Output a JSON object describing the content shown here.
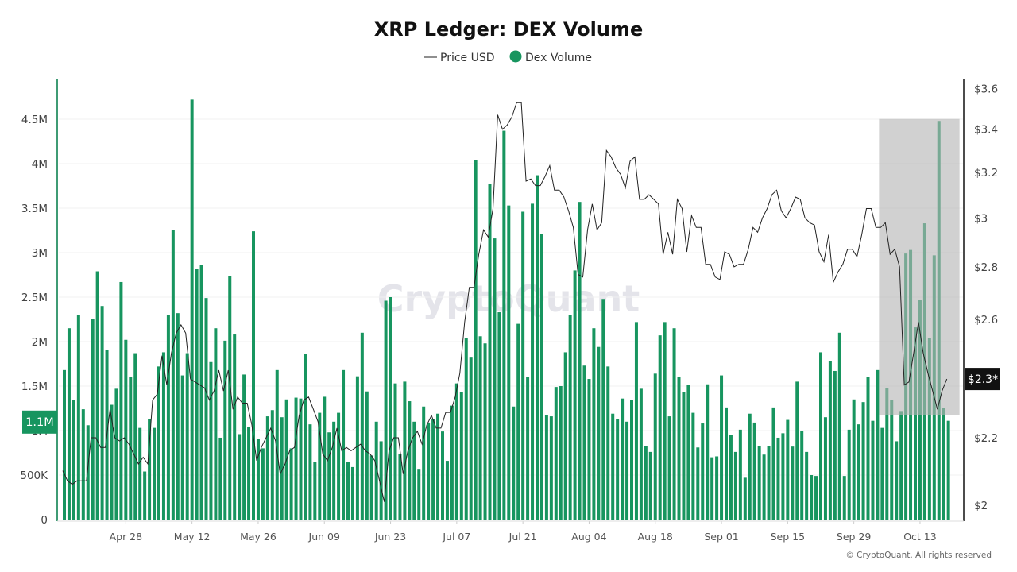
{
  "chart_data": {
    "type": "bar+line",
    "title": "XRP Ledger: DEX Volume",
    "legend": {
      "placement": "top-center",
      "entries": [
        "Price USD",
        "Dex Volume"
      ]
    },
    "watermark": "CryptoQuant",
    "footer": "© CryptoQuant. All rights reserved",
    "x_tick_labels": [
      "Apr 28",
      "May 12",
      "May 26",
      "Jun 09",
      "Jun 23",
      "Jul 07",
      "Jul 21",
      "Aug 04",
      "Aug 18",
      "Sep 01",
      "Sep 15",
      "Sep 29",
      "Oct 13"
    ],
    "left_axis": {
      "ticks": [
        "0",
        "500K",
        "1M",
        "1.5M",
        "2M",
        "2.5M",
        "3M",
        "3.5M",
        "4M",
        "4.5M"
      ],
      "tick_values": [
        0,
        0.5,
        1,
        1.5,
        2,
        2.5,
        3,
        3.5,
        4,
        4.5
      ],
      "unit": "M",
      "ylim": [
        0,
        4.9
      ],
      "hover_label": "1.1M",
      "hover_value": 1.1
    },
    "right_axis": {
      "scale": "log",
      "ticks": [
        "$2",
        "$2.2",
        "$2.6",
        "$2.8",
        "$3",
        "$3.2",
        "$3.4",
        "$3.6"
      ],
      "tick_values": [
        2,
        2.2,
        2.6,
        2.8,
        3,
        3.2,
        3.4,
        3.6
      ],
      "ylim": [
        1.96,
        3.7
      ],
      "last_label": "$2.3*"
    },
    "grid": true,
    "highlight_region": {
      "from_index": 173,
      "to_index": 187,
      "top_value_price": 3.45,
      "bottom_value_volume": 1.17
    },
    "colors": {
      "volume": "#17955f",
      "price": "#222222",
      "left_axis": "#3f9b74",
      "highlight": "#b4b4b4"
    },
    "series": [
      {
        "name": "Dex Volume",
        "type": "bar",
        "axis": "left",
        "values": [
          1.68,
          2.15,
          1.34,
          2.3,
          1.24,
          1.06,
          2.25,
          2.79,
          2.4,
          1.91,
          1.29,
          1.47,
          2.67,
          2.02,
          1.6,
          1.87,
          1.03,
          0.54,
          1.13,
          1.03,
          1.72,
          1.88,
          2.3,
          3.25,
          2.32,
          1.62,
          1.87,
          4.72,
          2.82,
          2.86,
          2.49,
          1.77,
          2.15,
          0.92,
          2.01,
          2.74,
          2.08,
          0.96,
          1.63,
          1.04,
          3.24,
          0.91,
          0.8,
          1.16,
          1.23,
          1.68,
          1.15,
          1.35,
          0.8,
          1.37,
          1.36,
          1.86,
          1.07,
          0.65,
          1.2,
          1.38,
          0.98,
          1.1,
          1.2,
          1.68,
          0.65,
          0.59,
          1.61,
          2.1,
          1.44,
          0.72,
          1.1,
          0.88,
          2.46,
          2.5,
          1.53,
          0.74,
          1.55,
          1.33,
          1.1,
          0.57,
          1.27,
          1.09,
          1.13,
          1.19,
          0.99,
          0.66,
          1.28,
          1.53,
          1.43,
          2.04,
          1.82,
          4.04,
          2.06,
          1.98,
          3.77,
          3.16,
          2.33,
          4.37,
          3.53,
          1.27,
          2.2,
          3.46,
          1.6,
          3.55,
          3.87,
          3.21,
          1.17,
          1.16,
          1.49,
          1.5,
          1.88,
          2.3,
          2.8,
          3.57,
          1.73,
          1.58,
          2.15,
          1.94,
          2.48,
          1.72,
          1.19,
          1.13,
          1.36,
          1.1,
          1.34,
          2.22,
          1.47,
          0.83,
          0.76,
          1.64,
          2.07,
          2.22,
          1.16,
          2.15,
          1.6,
          1.43,
          1.51,
          1.2,
          0.81,
          1.08,
          1.52,
          0.7,
          0.71,
          1.62,
          1.26,
          0.95,
          0.76,
          1.01,
          0.47,
          1.19,
          1.09,
          0.83,
          0.73,
          0.83,
          1.26,
          0.92,
          0.97,
          1.12,
          0.82,
          1.55,
          1.0,
          0.76,
          0.5,
          0.49,
          1.88,
          1.15,
          1.78,
          1.67,
          2.1,
          0.49,
          1.01,
          1.35,
          1.07,
          1.32,
          1.6,
          1.11,
          1.68,
          1.03,
          1.48,
          1.34,
          0.88,
          1.22,
          2.99,
          3.03,
          2.16,
          2.47,
          3.33,
          2.04,
          2.97,
          4.48,
          1.25,
          1.11
        ]
      },
      {
        "name": "Price USD",
        "type": "line",
        "axis": "right",
        "values": [
          2.1,
          2.07,
          2.06,
          2.07,
          2.07,
          2.07,
          2.2,
          2.2,
          2.17,
          2.17,
          2.29,
          2.2,
          2.19,
          2.2,
          2.18,
          2.15,
          2.12,
          2.14,
          2.12,
          2.32,
          2.34,
          2.47,
          2.37,
          2.48,
          2.55,
          2.58,
          2.55,
          2.39,
          2.38,
          2.37,
          2.36,
          2.32,
          2.35,
          2.42,
          2.35,
          2.42,
          2.29,
          2.33,
          2.31,
          2.31,
          2.24,
          2.13,
          2.17,
          2.2,
          2.23,
          2.19,
          2.09,
          2.12,
          2.16,
          2.17,
          2.27,
          2.32,
          2.33,
          2.29,
          2.25,
          2.15,
          2.13,
          2.17,
          2.23,
          2.16,
          2.17,
          2.16,
          2.17,
          2.18,
          2.16,
          2.15,
          2.13,
          2.07,
          2.01,
          2.16,
          2.2,
          2.2,
          2.09,
          2.16,
          2.2,
          2.22,
          2.18,
          2.24,
          2.27,
          2.23,
          2.23,
          2.28,
          2.28,
          2.33,
          2.41,
          2.59,
          2.72,
          2.72,
          2.85,
          2.95,
          2.92,
          3.04,
          3.47,
          3.4,
          3.42,
          3.46,
          3.53,
          3.53,
          3.16,
          3.17,
          3.14,
          3.14,
          3.18,
          3.23,
          3.12,
          3.12,
          3.09,
          3.03,
          2.96,
          2.77,
          2.76,
          2.95,
          3.06,
          2.95,
          2.98,
          3.3,
          3.27,
          3.22,
          3.19,
          3.13,
          3.25,
          3.27,
          3.08,
          3.08,
          3.1,
          3.08,
          3.06,
          2.85,
          2.94,
          2.85,
          3.08,
          3.04,
          2.86,
          3.01,
          2.96,
          2.96,
          2.81,
          2.81,
          2.76,
          2.75,
          2.86,
          2.85,
          2.8,
          2.81,
          2.81,
          2.87,
          2.96,
          2.94,
          3.0,
          3.04,
          3.1,
          3.12,
          3.03,
          3.0,
          3.04,
          3.09,
          3.08,
          3.0,
          2.98,
          2.97,
          2.86,
          2.82,
          2.93,
          2.74,
          2.78,
          2.81,
          2.87,
          2.87,
          2.84,
          2.93,
          3.04,
          3.04,
          2.96,
          2.96,
          2.98,
          2.85,
          2.87,
          2.8,
          2.37,
          2.38,
          2.48,
          2.59,
          2.48,
          2.41,
          2.35,
          2.29,
          2.35,
          2.39
        ]
      }
    ]
  }
}
